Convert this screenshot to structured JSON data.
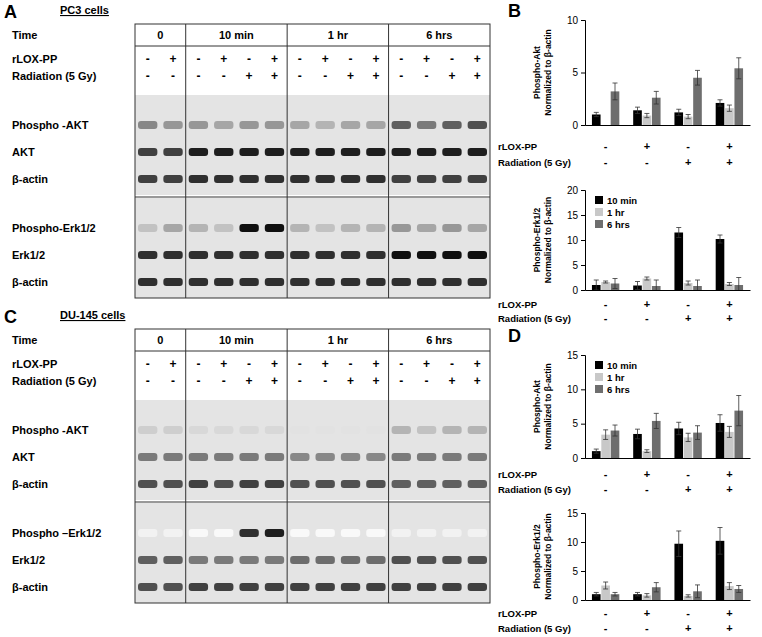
{
  "blots": [
    {
      "panel": "A",
      "title": "PC3 cells",
      "time_label": "Time",
      "groups": [
        "0",
        "10 min",
        "1 hr",
        "6 hrs"
      ],
      "conditions": [
        {
          "label": "rLOX-PP",
          "marks": [
            [
              "-",
              "+"
            ],
            [
              "-",
              "+",
              "-",
              "+"
            ],
            [
              "-",
              "+",
              "-",
              "+"
            ],
            [
              "-",
              "+",
              "-",
              "+"
            ]
          ]
        },
        {
          "label": "Radiation (5 Gy)",
          "marks": [
            [
              "-",
              "-"
            ],
            [
              "-",
              "-",
              "+",
              "+"
            ],
            [
              "-",
              "-",
              "+",
              "+"
            ],
            [
              "-",
              "-",
              "+",
              "+"
            ]
          ]
        }
      ],
      "gels": [
        {
          "rows": [
            {
              "label": "Phospho -AKT",
              "intensity": [
                [
                  0.55,
                  0.5
                ],
                [
                  0.5,
                  0.45,
                  0.5,
                  0.5
                ],
                [
                  0.45,
                  0.4,
                  0.45,
                  0.45
                ],
                [
                  0.7,
                  0.6,
                  0.7,
                  0.75
                ]
              ]
            },
            {
              "label": "AKT",
              "intensity": [
                [
                  0.8,
                  0.8
                ],
                [
                  0.9,
                  0.9,
                  0.9,
                  0.9
                ],
                [
                  0.9,
                  0.9,
                  0.9,
                  0.9
                ],
                [
                  0.9,
                  0.9,
                  0.9,
                  0.9
                ]
              ]
            },
            {
              "label": "β-actin",
              "intensity": [
                [
                  0.8,
                  0.8
                ],
                [
                  0.85,
                  0.85,
                  0.85,
                  0.85
                ],
                [
                  0.85,
                  0.85,
                  0.85,
                  0.85
                ],
                [
                  0.8,
                  0.8,
                  0.8,
                  0.8
                ]
              ]
            }
          ]
        },
        {
          "rows": [
            {
              "label": "Phospho-Erk1/2",
              "intensity": [
                [
                  0.35,
                  0.45
                ],
                [
                  0.4,
                  0.35,
                  0.95,
                  0.95
                ],
                [
                  0.4,
                  0.35,
                  0.4,
                  0.4
                ],
                [
                  0.5,
                  0.45,
                  0.5,
                  0.45
                ]
              ]
            },
            {
              "label": "Erk1/2",
              "intensity": [
                [
                  0.85,
                  0.85
                ],
                [
                  0.85,
                  0.85,
                  0.85,
                  0.85
                ],
                [
                  0.85,
                  0.85,
                  0.85,
                  0.85
                ],
                [
                  0.95,
                  0.95,
                  0.95,
                  0.95
                ]
              ]
            },
            {
              "label": "β-actin",
              "intensity": [
                [
                  0.85,
                  0.85
                ],
                [
                  0.85,
                  0.85,
                  0.85,
                  0.85
                ],
                [
                  0.85,
                  0.85,
                  0.85,
                  0.85
                ],
                [
                  0.85,
                  0.85,
                  0.85,
                  0.85
                ]
              ]
            }
          ]
        }
      ]
    },
    {
      "panel": "C",
      "title": "DU-145 cells",
      "time_label": "Time",
      "groups": [
        "0",
        "10 min",
        "1 hr",
        "6 hrs"
      ],
      "conditions": [
        {
          "label": "rLOX-PP",
          "marks": [
            [
              "-",
              "+"
            ],
            [
              "-",
              "+",
              "-",
              "+"
            ],
            [
              "-",
              "+",
              "-",
              "+"
            ],
            [
              "-",
              "+",
              "-",
              "+"
            ]
          ]
        },
        {
          "label": "Radiation (5 Gy)",
          "marks": [
            [
              "-",
              "-"
            ],
            [
              "-",
              "-",
              "+",
              "+"
            ],
            [
              "-",
              "-",
              "+",
              "+"
            ],
            [
              "-",
              "-",
              "+",
              "+"
            ]
          ]
        }
      ],
      "gels": [
        {
          "rows": [
            {
              "label": "Phospho -AKT",
              "intensity": [
                [
                  0.3,
                  0.3
                ],
                [
                  0.25,
                  0.25,
                  0.25,
                  0.25
                ],
                [
                  0.2,
                  0.2,
                  0.2,
                  0.2
                ],
                [
                  0.4,
                  0.35,
                  0.4,
                  0.4
                ]
              ]
            },
            {
              "label": "AKT",
              "intensity": [
                [
                  0.6,
                  0.6
                ],
                [
                  0.6,
                  0.6,
                  0.6,
                  0.6
                ],
                [
                  0.55,
                  0.55,
                  0.55,
                  0.55
                ],
                [
                  0.6,
                  0.6,
                  0.6,
                  0.6
                ]
              ]
            },
            {
              "label": "β-actin",
              "intensity": [
                [
                  0.75,
                  0.75
                ],
                [
                  0.8,
                  0.75,
                  0.8,
                  0.8
                ],
                [
                  0.75,
                  0.75,
                  0.75,
                  0.75
                ],
                [
                  0.7,
                  0.7,
                  0.7,
                  0.7
                ]
              ]
            }
          ]
        },
        {
          "rows": [
            {
              "label": "Phospho –Erk1/2",
              "intensity": [
                [
                  0.1,
                  0.1
                ],
                [
                  0.05,
                  0.05,
                  0.85,
                  0.9
                ],
                [
                  0.05,
                  0.05,
                  0.05,
                  0.05
                ],
                [
                  0.1,
                  0.1,
                  0.1,
                  0.1
                ]
              ]
            },
            {
              "label": "Erk1/2",
              "intensity": [
                [
                  0.7,
                  0.7
                ],
                [
                  0.6,
                  0.6,
                  0.6,
                  0.6
                ],
                [
                  0.65,
                  0.65,
                  0.65,
                  0.65
                ],
                [
                  0.75,
                  0.75,
                  0.75,
                  0.75
                ]
              ]
            },
            {
              "label": "β-actin",
              "intensity": [
                [
                  0.75,
                  0.75
                ],
                [
                  0.8,
                  0.8,
                  0.8,
                  0.8
                ],
                [
                  0.8,
                  0.8,
                  0.8,
                  0.8
                ],
                [
                  0.8,
                  0.8,
                  0.8,
                  0.8
                ]
              ]
            }
          ]
        }
      ]
    }
  ],
  "chart_data": [
    {
      "type": "bar",
      "panel": "B",
      "ylabel": [
        "Phospho-Akt",
        "Normalized to β-actin"
      ],
      "categories": [
        null,
        null,
        null,
        null
      ],
      "conditions": [
        {
          "label": "rLOX-PP",
          "marks": [
            "-",
            "+",
            "-",
            "+"
          ]
        },
        {
          "label": "Radiation (5 Gy)",
          "marks": [
            "-",
            "-",
            "+",
            "+"
          ]
        }
      ],
      "ylim": [
        0,
        10
      ],
      "yticks": [
        0,
        5,
        10
      ],
      "series": [
        {
          "color": "#000000",
          "values": [
            1.0,
            1.4,
            1.2,
            2.1
          ],
          "errors": [
            0.2,
            0.3,
            0.3,
            0.3
          ]
        },
        {
          "color": "#c8c8c8",
          "values": [
            null,
            0.9,
            0.8,
            1.6
          ],
          "errors": [
            null,
            0.2,
            0.2,
            0.3
          ]
        },
        {
          "color": "#6e6e6e",
          "values": [
            3.2,
            2.6,
            4.5,
            5.4
          ],
          "errors": [
            0.8,
            0.6,
            0.7,
            1.0
          ]
        }
      ]
    },
    {
      "type": "bar",
      "ylabel": [
        "Phospho-Erk1/2",
        "Normalized to β-actin"
      ],
      "categories": [
        null,
        null,
        null,
        null
      ],
      "conditions": [
        {
          "label": "rLOX-PP",
          "marks": [
            "-",
            "+",
            "-",
            "+"
          ]
        },
        {
          "label": "Radiation (5 Gy)",
          "marks": [
            "-",
            "-",
            "+",
            "+"
          ]
        }
      ],
      "ylim": [
        0,
        20
      ],
      "yticks": [
        0,
        5,
        10,
        15,
        20
      ],
      "legend": "upper left",
      "series": [
        {
          "name": "10 min",
          "color": "#000000",
          "values": [
            1.0,
            0.9,
            11.5,
            10.2
          ],
          "errors": [
            1.0,
            0.8,
            1.0,
            0.8
          ]
        },
        {
          "name": "1 hr",
          "color": "#c8c8c8",
          "values": [
            1.6,
            2.3,
            1.4,
            1.2
          ],
          "errors": [
            0.2,
            0.3,
            0.4,
            0.3
          ]
        },
        {
          "name": "6 hrs",
          "color": "#6e6e6e",
          "values": [
            1.3,
            0.8,
            0.8,
            1.0
          ],
          "errors": [
            1.0,
            1.2,
            1.2,
            1.5
          ]
        }
      ]
    },
    {
      "type": "bar",
      "panel": "D",
      "ylabel": [
        "Phospho-Akt",
        "Normalized to β-actin"
      ],
      "categories": [
        null,
        null,
        null,
        null
      ],
      "conditions": [
        {
          "label": "rLOX-PP",
          "marks": [
            "-",
            "+",
            "-",
            "+"
          ]
        },
        {
          "label": "Radiation (5 Gy)",
          "marks": [
            "-",
            "-",
            "+",
            "+"
          ]
        }
      ],
      "ylim": [
        0,
        15
      ],
      "yticks": [
        0,
        5,
        10,
        15
      ],
      "legend": "upper left",
      "series": [
        {
          "name": "10 min",
          "color": "#000000",
          "values": [
            1.0,
            3.5,
            4.3,
            5.1
          ],
          "errors": [
            0.3,
            0.7,
            0.9,
            1.2
          ]
        },
        {
          "name": "1 hr",
          "color": "#c8c8c8",
          "values": [
            3.4,
            1.0,
            3.0,
            3.8
          ],
          "errors": [
            0.7,
            0.2,
            0.6,
            0.8
          ]
        },
        {
          "name": "6 hrs",
          "color": "#6e6e6e",
          "values": [
            4.0,
            5.4,
            3.7,
            6.9
          ],
          "errors": [
            0.8,
            1.1,
            1.0,
            2.2
          ]
        }
      ]
    },
    {
      "type": "bar",
      "ylabel": [
        "Phospho-Erk1/2",
        "Normalized to β-actin"
      ],
      "categories": [
        null,
        null,
        null,
        null
      ],
      "conditions": [
        {
          "label": "rLOX-PP",
          "marks": [
            "-",
            "+",
            "-",
            "+"
          ]
        },
        {
          "label": "Radiation (5 Gy)",
          "marks": [
            "-",
            "-",
            "+",
            "+"
          ]
        }
      ],
      "ylim": [
        0,
        15
      ],
      "yticks": [
        0,
        5,
        10,
        15
      ],
      "series": [
        {
          "color": "#000000",
          "values": [
            1.0,
            1.0,
            9.7,
            10.2
          ],
          "errors": [
            0.3,
            0.3,
            2.2,
            2.3
          ]
        },
        {
          "color": "#c8c8c8",
          "values": [
            2.5,
            0.8,
            0.7,
            2.4
          ],
          "errors": [
            0.6,
            0.3,
            0.2,
            0.6
          ]
        },
        {
          "color": "#6e6e6e",
          "values": [
            1.0,
            2.2,
            1.5,
            1.9
          ],
          "errors": [
            0.3,
            0.8,
            1.1,
            0.6
          ]
        }
      ]
    }
  ]
}
